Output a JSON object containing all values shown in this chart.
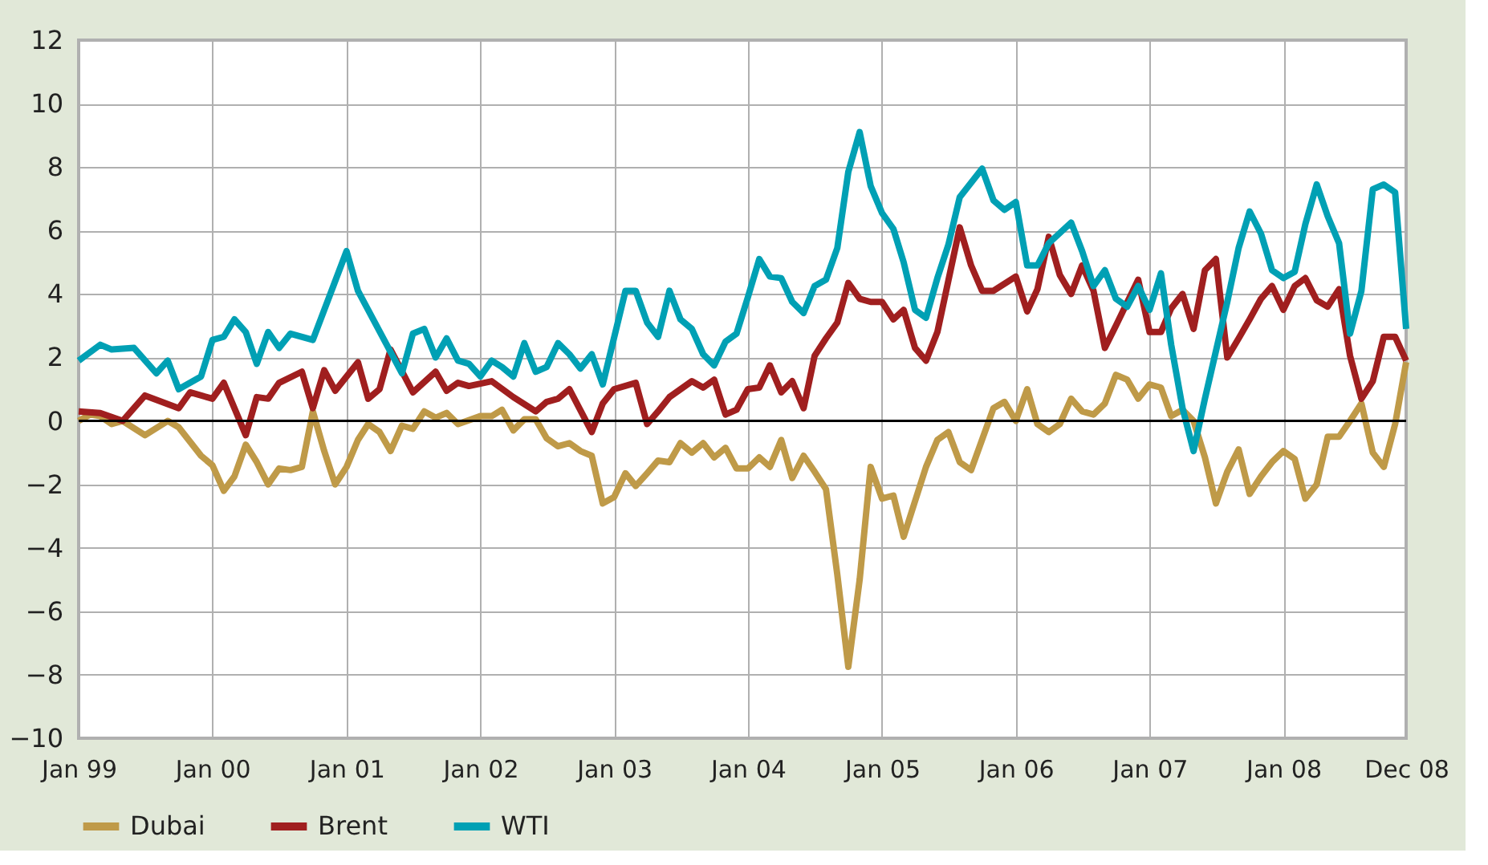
{
  "chart_data": {
    "type": "line",
    "xlim": [
      "1999-01",
      "2008-12"
    ],
    "xticks": [
      {
        "value": "1999-01",
        "label": "Jan 99"
      },
      {
        "value": "2000-01",
        "label": "Jan 00"
      },
      {
        "value": "2001-01",
        "label": "Jan 01"
      },
      {
        "value": "2002-01",
        "label": "Jan 02"
      },
      {
        "value": "2003-01",
        "label": "Jan 03"
      },
      {
        "value": "2004-01",
        "label": "Jan 04"
      },
      {
        "value": "2005-01",
        "label": "Jan 05"
      },
      {
        "value": "2006-01",
        "label": "Jan 06"
      },
      {
        "value": "2007-01",
        "label": "Jan 07"
      },
      {
        "value": "2008-01",
        "label": "Jan 08"
      },
      {
        "value": "2008-12",
        "label": "Dec 08"
      }
    ],
    "ylim": [
      -10,
      12
    ],
    "yticks": [
      -10,
      -8,
      -6,
      -4,
      -2,
      0,
      2,
      4,
      6,
      8,
      10,
      12
    ],
    "grid": true,
    "legend": "bottom left",
    "marker": "none",
    "line_style": "solid",
    "ref_lines": [
      {
        "axis": "y",
        "value": 0,
        "label": null,
        "color": "#000000"
      }
    ],
    "series": [
      {
        "name": "Dubai",
        "color": "#bf9a48",
        "x": [
          "1999-01",
          "1999-02",
          "1999-03",
          "1999-04",
          "1999-05",
          "1999-07",
          "1999-09",
          "1999-10",
          "1999-12",
          "2000-01",
          "2000-02",
          "2000-03",
          "2000-04",
          "2000-05",
          "2000-06",
          "2000-07",
          "2000-08",
          "2000-09",
          "2000-10",
          "2000-11",
          "2000-12",
          "2001-01",
          "2001-02",
          "2001-03",
          "2001-04",
          "2001-05",
          "2001-06",
          "2001-07",
          "2001-08",
          "2001-09",
          "2001-10",
          "2001-11",
          "2002-01",
          "2002-02",
          "2002-03",
          "2002-04",
          "2002-05",
          "2002-06",
          "2002-07",
          "2002-08",
          "2002-09",
          "2002-10",
          "2002-11",
          "2002-12",
          "2003-01",
          "2003-02",
          "2003-03",
          "2003-04",
          "2003-05",
          "2003-06",
          "2003-07",
          "2003-08",
          "2003-09",
          "2003-10",
          "2003-11",
          "2003-12",
          "2004-01",
          "2004-02",
          "2004-03",
          "2004-04",
          "2004-05",
          "2004-06",
          "2004-07",
          "2004-08",
          "2004-09",
          "2004-10",
          "2004-11",
          "2004-12",
          "2005-01",
          "2005-02",
          "2005-03",
          "2005-05",
          "2005-06",
          "2005-07",
          "2005-08",
          "2005-09",
          "2005-11",
          "2005-12",
          "2006-01",
          "2006-02",
          "2006-03",
          "2006-04",
          "2006-05",
          "2006-06",
          "2006-07",
          "2006-08",
          "2006-09",
          "2006-10",
          "2006-11",
          "2006-12",
          "2007-01",
          "2007-02",
          "2007-03",
          "2007-04",
          "2007-05",
          "2007-06",
          "2007-07",
          "2007-08",
          "2007-09",
          "2007-10",
          "2007-11",
          "2007-12",
          "2008-01",
          "2008-02",
          "2008-03",
          "2008-04",
          "2008-05",
          "2008-06",
          "2008-07",
          "2008-08",
          "2008-09",
          "2008-10",
          "2008-11",
          "2008-12"
        ],
        "values": [
          0,
          0.2,
          0.15,
          -0.1,
          0,
          -0.45,
          0,
          -0.2,
          -1.1,
          -1.4,
          -2.2,
          -1.75,
          -0.75,
          -1.3,
          -2.0,
          -1.5,
          -1.55,
          -1.45,
          0.3,
          -0.95,
          -2.0,
          -1.45,
          -0.6,
          -0.1,
          -0.35,
          -0.95,
          -0.15,
          -0.25,
          0.3,
          0.1,
          0.25,
          -0.1,
          0.15,
          0.15,
          0.35,
          -0.3,
          0.05,
          0.05,
          -0.55,
          -0.8,
          -0.7,
          -0.95,
          -1.1,
          -2.6,
          -2.4,
          -1.65,
          -2.05,
          -1.65,
          -1.25,
          -1.3,
          -0.7,
          -1.0,
          -0.7,
          -1.15,
          -0.85,
          -1.5,
          -1.5,
          -1.15,
          -1.45,
          -0.6,
          -1.8,
          -1.1,
          -1.6,
          -2.15,
          -4.85,
          -7.75,
          -5.0,
          -1.45,
          -2.45,
          -2.35,
          -3.65,
          -1.45,
          -0.6,
          -0.35,
          -1.3,
          -1.55,
          0.4,
          0.6,
          0,
          1.0,
          -0.1,
          -0.35,
          -0.1,
          0.7,
          0.3,
          0.2,
          0.55,
          1.45,
          1.3,
          0.7,
          1.15,
          1.05,
          0.15,
          0.35,
          0,
          -1.15,
          -2.6,
          -1.6,
          -0.9,
          -2.3,
          -1.75,
          -1.3,
          -0.95,
          -1.2,
          -2.45,
          -2.0,
          -0.5,
          -0.5,
          0,
          0.55,
          -1.0,
          -1.45,
          -0.1,
          1.85
        ]
      },
      {
        "name": "Brent",
        "color": "#a01f1f",
        "x": [
          "1999-01",
          "1999-03",
          "1999-05",
          "1999-07",
          "1999-10",
          "1999-11",
          "2000-01",
          "2000-02",
          "2000-04",
          "2000-05",
          "2000-06",
          "2000-07",
          "2000-09",
          "2000-10",
          "2000-11",
          "2000-12",
          "2001-02",
          "2001-03",
          "2001-04",
          "2001-05",
          "2001-07",
          "2001-09",
          "2001-10",
          "2001-11",
          "2001-12",
          "2002-02",
          "2002-04",
          "2002-06",
          "2002-07",
          "2002-08",
          "2002-09",
          "2002-11",
          "2002-12",
          "2003-01",
          "2003-03",
          "2003-04",
          "2003-05",
          "2003-06",
          "2003-08",
          "2003-09",
          "2003-10",
          "2003-11",
          "2003-12",
          "2004-01",
          "2004-02",
          "2004-03",
          "2004-04",
          "2004-05",
          "2004-06",
          "2004-07",
          "2004-08",
          "2004-09",
          "2004-10",
          "2004-11",
          "2004-12",
          "2005-01",
          "2005-02",
          "2005-03",
          "2005-04",
          "2005-05",
          "2005-06",
          "2005-08",
          "2005-09",
          "2005-10",
          "2005-11",
          "2006-01",
          "2006-02",
          "2006-03",
          "2006-04",
          "2006-05",
          "2006-06",
          "2006-07",
          "2006-08",
          "2006-09",
          "2006-10",
          "2006-12",
          "2007-01",
          "2007-02",
          "2007-03",
          "2007-04",
          "2007-05",
          "2007-06",
          "2007-07",
          "2007-08",
          "2007-09",
          "2007-10",
          "2007-11",
          "2007-12",
          "2008-01",
          "2008-02",
          "2008-03",
          "2008-04",
          "2008-05",
          "2008-06",
          "2008-07",
          "2008-08",
          "2008-09",
          "2008-10",
          "2008-11",
          "2008-12"
        ],
        "values": [
          0.3,
          0.25,
          0,
          0.8,
          0.4,
          0.9,
          0.7,
          1.2,
          -0.45,
          0.75,
          0.7,
          1.2,
          1.55,
          0.4,
          1.6,
          0.95,
          1.85,
          0.7,
          1.0,
          2.25,
          0.9,
          1.55,
          0.95,
          1.2,
          1.1,
          1.25,
          0.75,
          0.3,
          0.6,
          0.7,
          1.0,
          -0.35,
          0.55,
          1.0,
          1.2,
          -0.1,
          0.3,
          0.75,
          1.25,
          1.05,
          1.3,
          0.2,
          0.35,
          1.0,
          1.05,
          1.75,
          0.9,
          1.25,
          0.4,
          2.05,
          2.6,
          3.1,
          4.35,
          3.85,
          3.75,
          3.75,
          3.2,
          3.5,
          2.3,
          1.9,
          2.8,
          6.1,
          4.9,
          4.1,
          4.1,
          4.55,
          3.45,
          4.15,
          5.8,
          4.6,
          4.0,
          4.9,
          4.1,
          2.3,
          3.0,
          4.45,
          2.8,
          2.8,
          3.55,
          4.0,
          2.9,
          4.75,
          5.1,
          2.0,
          2.6,
          3.2,
          3.85,
          4.25,
          3.5,
          4.25,
          4.5,
          3.8,
          3.6,
          4.15,
          2.05,
          0.7,
          1.25,
          2.65,
          2.65,
          1.9
        ]
      },
      {
        "name": "WTI",
        "color": "#00a0b4",
        "x": [
          "1999-01",
          "1999-03",
          "1999-04",
          "1999-06",
          "1999-08",
          "1999-09",
          "1999-10",
          "1999-12",
          "2000-01",
          "2000-02",
          "2000-03",
          "2000-04",
          "2000-05",
          "2000-06",
          "2000-07",
          "2000-08",
          "2000-10",
          "2001-01",
          "2001-02",
          "2001-06",
          "2001-07",
          "2001-08",
          "2001-09",
          "2001-10",
          "2001-11",
          "2001-12",
          "2002-01",
          "2002-02",
          "2002-03",
          "2002-04",
          "2002-05",
          "2002-06",
          "2002-07",
          "2002-08",
          "2002-09",
          "2002-10",
          "2002-11",
          "2002-12",
          "2003-02",
          "2003-03",
          "2003-04",
          "2003-05",
          "2003-06",
          "2003-07",
          "2003-08",
          "2003-09",
          "2003-10",
          "2003-11",
          "2003-12",
          "2004-01",
          "2004-02",
          "2004-03",
          "2004-04",
          "2004-05",
          "2004-06",
          "2004-07",
          "2004-08",
          "2004-09",
          "2004-10",
          "2004-11",
          "2004-12",
          "2005-01",
          "2005-02",
          "2005-03",
          "2005-04",
          "2005-05",
          "2005-06",
          "2005-07",
          "2005-08",
          "2005-10",
          "2005-11",
          "2005-12",
          "2006-01",
          "2006-02",
          "2006-03",
          "2006-04",
          "2006-06",
          "2006-07",
          "2006-08",
          "2006-09",
          "2006-10",
          "2006-11",
          "2006-12",
          "2007-01",
          "2007-02",
          "2007-03",
          "2007-04",
          "2007-05",
          "2007-06",
          "2007-08",
          "2007-09",
          "2007-10",
          "2007-11",
          "2007-12",
          "2008-01",
          "2008-02",
          "2008-03",
          "2008-04",
          "2008-05",
          "2008-06",
          "2008-07",
          "2008-08",
          "2008-09",
          "2008-10",
          "2008-11",
          "2008-12"
        ],
        "values": [
          1.9,
          2.4,
          2.25,
          2.3,
          1.5,
          1.9,
          1.0,
          1.4,
          2.55,
          2.65,
          3.2,
          2.8,
          1.8,
          2.8,
          2.3,
          2.75,
          2.55,
          5.35,
          4.1,
          1.5,
          2.75,
          2.9,
          2.0,
          2.6,
          1.9,
          1.8,
          1.4,
          1.9,
          1.7,
          1.4,
          2.45,
          1.55,
          1.7,
          2.45,
          2.1,
          1.65,
          2.1,
          1.15,
          4.1,
          4.1,
          3.1,
          2.65,
          4.1,
          3.2,
          2.9,
          2.1,
          1.75,
          2.5,
          2.75,
          3.9,
          5.1,
          4.55,
          4.5,
          3.75,
          3.4,
          4.25,
          4.45,
          5.45,
          7.85,
          9.1,
          7.4,
          6.55,
          6.05,
          5.0,
          3.5,
          3.25,
          4.5,
          5.55,
          7.05,
          7.95,
          6.95,
          6.65,
          6.9,
          4.9,
          4.9,
          5.6,
          6.25,
          5.35,
          4.25,
          4.75,
          3.85,
          3.6,
          4.25,
          3.5,
          4.65,
          2.4,
          0.4,
          -0.95,
          0.7,
          3.75,
          5.45,
          6.6,
          5.9,
          4.75,
          4.5,
          4.7,
          6.2,
          7.45,
          6.45,
          5.6,
          2.75,
          4.1,
          7.3,
          7.45,
          7.2,
          2.9
        ]
      }
    ]
  }
}
